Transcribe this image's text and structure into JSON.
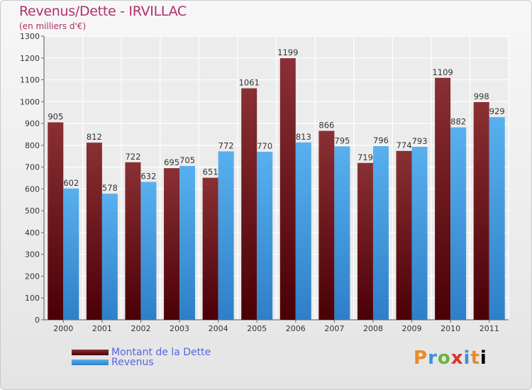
{
  "header": {
    "title": "Revenus/Dette - IRVILLAC",
    "subtitle": "(en milliers d'€)"
  },
  "legend": {
    "items": [
      {
        "label": "Montant de la Dette",
        "color": "#7a1a1e"
      },
      {
        "label": "Revenus",
        "color": "#4aa3e6"
      }
    ]
  },
  "logo": {
    "text": "Proxiti"
  },
  "colors": {
    "dette_top": "#8a3034",
    "dette_bottom": "#4a0006",
    "revenus_top": "#58b0ee",
    "revenus_bottom": "#2e7fc8"
  },
  "chart_data": {
    "type": "bar",
    "title": "Revenus/Dette - IRVILLAC",
    "subtitle": "(en milliers d'€)",
    "categories": [
      "2000",
      "2001",
      "2002",
      "2003",
      "2004",
      "2005",
      "2006",
      "2007",
      "2008",
      "2009",
      "2010",
      "2011"
    ],
    "series": [
      {
        "name": "Montant de la Dette",
        "values": [
          905,
          812,
          722,
          695,
          651,
          1061,
          1199,
          866,
          719,
          774,
          1109,
          998
        ]
      },
      {
        "name": "Revenus",
        "values": [
          602,
          578,
          632,
          705,
          772,
          770,
          813,
          795,
          796,
          793,
          882,
          929
        ]
      }
    ],
    "ylim": [
      0,
      1300
    ],
    "yticks": [
      0,
      100,
      200,
      300,
      400,
      500,
      600,
      700,
      800,
      900,
      1000,
      1100,
      1200,
      1300
    ],
    "grid": true,
    "legend_position": "bottom-left"
  }
}
